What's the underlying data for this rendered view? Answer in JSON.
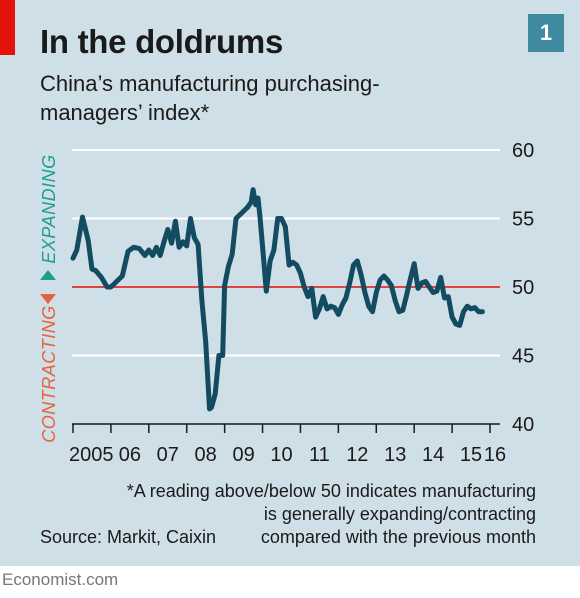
{
  "header": {
    "title": "In the doldrums",
    "subtitle_line1": "China’s manufacturing purchasing-",
    "subtitle_line2": "managers’ index*",
    "chart_number": "1"
  },
  "footer": {
    "note_line1": "*A reading above/below 50 indicates manufacturing",
    "note_line2": "is generally expanding/contracting",
    "note_line3": "compared with the previous month",
    "source": "Source: Markit, Caixin",
    "brand": "Economist.com"
  },
  "colors": {
    "panel": "#cfdfe7",
    "line": "#134b61",
    "reference": "#e3120b",
    "expanding": "#1f9e8e",
    "contracting": "#e8603c",
    "accent_tag": "#e3120b",
    "number_box": "#3e8aa1"
  },
  "chart_data": {
    "type": "line",
    "title": "In the doldrums",
    "subtitle": "China’s manufacturing purchasing-managers’ index*",
    "y_axis_position": "right",
    "ylim": [
      40,
      60
    ],
    "yticks": [
      40,
      45,
      50,
      55,
      60
    ],
    "grid": true,
    "reference_line": 50,
    "x_tick_labels": [
      "2005",
      "06",
      "07",
      "08",
      "09",
      "10",
      "11",
      "12",
      "13",
      "14",
      "15",
      "16"
    ],
    "xlim": [
      2005.0,
      2016.0
    ],
    "annotations": {
      "expanding": "EXPANDING",
      "contracting": "CONTRACTING"
    },
    "series": [
      {
        "x": [
          2005.0,
          2005.1,
          2005.25,
          2005.4,
          2005.5,
          2005.6,
          2005.75,
          2005.9,
          2006.0,
          2006.15,
          2006.3,
          2006.45,
          2006.6,
          2006.75,
          2006.9,
          2007.0,
          2007.1,
          2007.2,
          2007.3,
          2007.4,
          2007.5,
          2007.6,
          2007.7,
          2007.8,
          2007.9,
          2008.0,
          2008.1,
          2008.2,
          2008.3,
          2008.4,
          2008.5,
          2008.6,
          2008.65,
          2008.75,
          2008.85,
          2008.95,
          2009.0,
          2009.1,
          2009.2,
          2009.3,
          2009.45,
          2009.6,
          2009.7,
          2009.75,
          2009.82,
          2009.88,
          2009.93,
          2010.0,
          2010.1,
          2010.2,
          2010.3,
          2010.4,
          2010.5,
          2010.6,
          2010.7,
          2010.8,
          2010.9,
          2011.0,
          2011.1,
          2011.2,
          2011.3,
          2011.4,
          2011.5,
          2011.6,
          2011.7,
          2011.8,
          2011.9,
          2012.0,
          2012.1,
          2012.2,
          2012.3,
          2012.4,
          2012.5,
          2012.6,
          2012.7,
          2012.8,
          2012.9,
          2013.0,
          2013.1,
          2013.2,
          2013.3,
          2013.4,
          2013.5,
          2013.6,
          2013.7,
          2013.8,
          2013.9,
          2014.0,
          2014.1,
          2014.2,
          2014.3,
          2014.4,
          2014.5,
          2014.6,
          2014.7,
          2014.8,
          2014.9,
          2015.0,
          2015.1,
          2015.2,
          2015.3,
          2015.4,
          2015.5,
          2015.6,
          2015.7,
          2015.8
        ],
        "values": [
          52.1,
          52.7,
          55.1,
          53.4,
          51.3,
          51.2,
          50.7,
          50.0,
          50.0,
          50.4,
          50.8,
          52.6,
          52.9,
          52.8,
          52.3,
          52.7,
          52.3,
          52.9,
          52.3,
          53.3,
          54.2,
          53.2,
          54.8,
          52.9,
          53.3,
          53.0,
          55.0,
          53.6,
          53.1,
          49.0,
          46.0,
          41.1,
          41.2,
          42.2,
          45.0,
          45.0,
          50.1,
          51.5,
          52.4,
          55.0,
          55.4,
          55.8,
          56.2,
          57.1,
          56.0,
          56.5,
          55.2,
          53.0,
          49.7,
          51.9,
          52.7,
          55.0,
          55.0,
          54.4,
          51.6,
          51.8,
          51.6,
          51.0,
          50.0,
          49.3,
          49.9,
          47.8,
          48.4,
          49.3,
          48.4,
          48.6,
          48.5,
          48.0,
          48.7,
          49.2,
          50.3,
          51.6,
          51.9,
          50.9,
          49.6,
          48.6,
          48.2,
          49.6,
          50.5,
          50.8,
          50.5,
          50.1,
          49.0,
          48.2,
          48.3,
          49.4,
          50.6,
          51.7,
          49.9,
          50.3,
          50.4,
          50.0,
          49.6,
          49.7,
          50.7,
          49.2,
          49.3,
          47.8,
          47.3,
          47.2,
          48.2,
          48.6,
          48.4,
          48.5,
          48.2,
          48.2
        ]
      }
    ]
  }
}
